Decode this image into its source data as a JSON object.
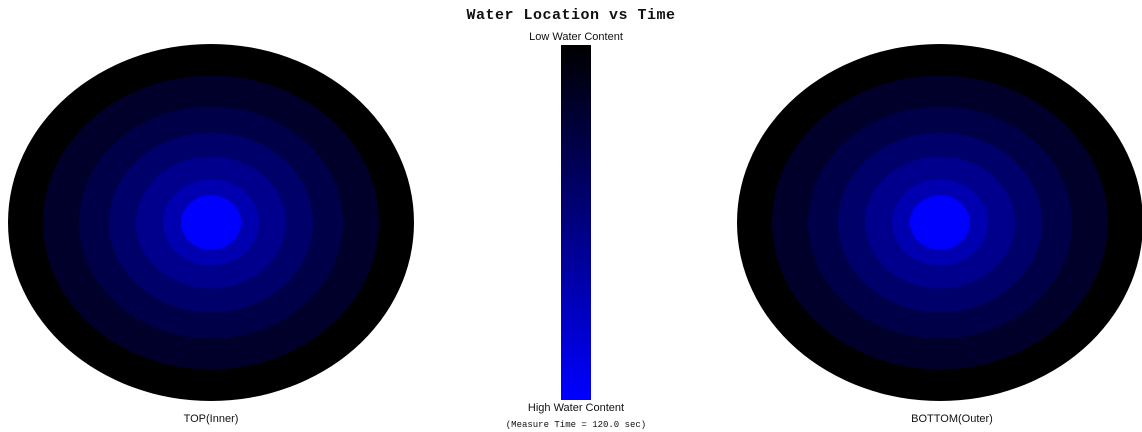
{
  "title": "Water Location vs Time",
  "scale": {
    "top_label": "Low Water Content",
    "bottom_label": "High Water Content",
    "top_color": "#000000",
    "bottom_color": "#0000ff"
  },
  "measure_text": "(Measure Time = 120.0 sec)",
  "discs": [
    {
      "id": "top",
      "caption": "TOP(Inner)",
      "ring_colors": [
        "#000000",
        "#00002a",
        "#000048",
        "#00006a",
        "#00008c",
        "#0000b0",
        "#0000e0",
        "#0000ff"
      ]
    },
    {
      "id": "bottom",
      "caption": "BOTTOM(Outer)",
      "ring_colors": [
        "#000000",
        "#00002a",
        "#000048",
        "#00006a",
        "#00008c",
        "#0000b0",
        "#0000e0",
        "#0000ff"
      ]
    }
  ]
}
